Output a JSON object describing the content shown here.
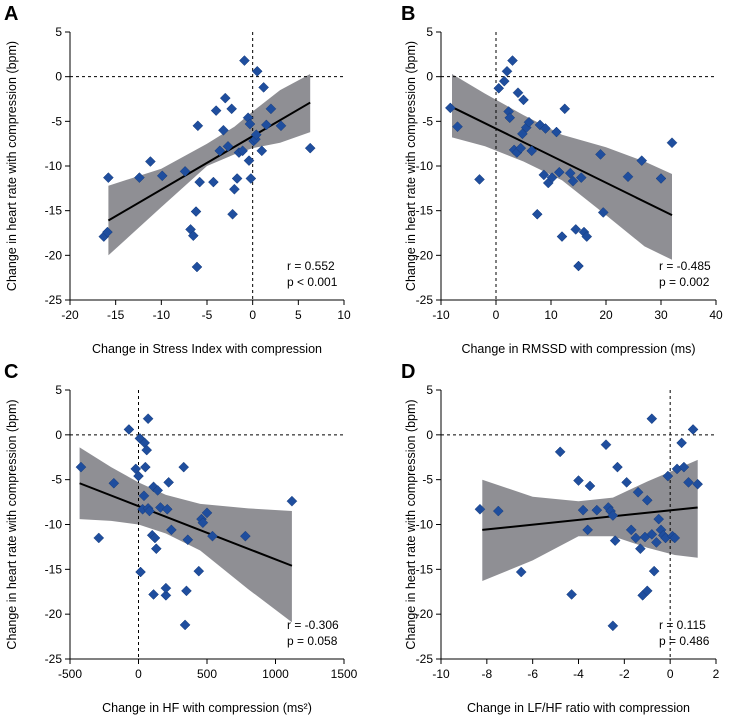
{
  "figure": {
    "ylabel": "Change in heart rate with compression (bpm)"
  },
  "colors": {
    "point": "#1f4e9e",
    "band": "#8f8f94",
    "line": "#000000",
    "refline": "#000000"
  },
  "chart_data": [
    {
      "panel": "A",
      "type": "scatter",
      "xlabel": "Change in Stress Index with compression",
      "ylabel": "Change in heart rate with compression (bpm)",
      "xlim": [
        -20,
        10
      ],
      "xticks": [
        -20,
        -15,
        -10,
        -5,
        0,
        5,
        10
      ],
      "ylim": [
        -25,
        5
      ],
      "yticks": [
        -25,
        -20,
        -15,
        -10,
        -5,
        0,
        5
      ],
      "stats": [
        "r = 0.552",
        "p < 0.001"
      ],
      "regression": {
        "x": [
          -15.8,
          6.3
        ],
        "y": [
          -16.1,
          -2.9
        ]
      },
      "band": {
        "x": [
          -15.8,
          -10,
          -5,
          -2,
          0,
          3,
          6.3
        ],
        "upper": [
          -12.2,
          -10.3,
          -7.5,
          -5.6,
          -3.9,
          -1.5,
          0.3
        ],
        "lower": [
          -20.0,
          -14.6,
          -10.0,
          -8.7,
          -8.0,
          -7.4,
          -6.2
        ]
      },
      "points": [
        [
          -16.3,
          -17.9
        ],
        [
          -15.9,
          -17.4
        ],
        [
          -15.8,
          -11.3
        ],
        [
          -12.4,
          -11.3
        ],
        [
          -11.2,
          -9.5
        ],
        [
          -9.9,
          -11.1
        ],
        [
          -7.4,
          -10.6
        ],
        [
          -6.8,
          -17.1
        ],
        [
          -6.5,
          -17.8
        ],
        [
          -6.2,
          -15.1
        ],
        [
          -6.1,
          -21.3
        ],
        [
          -6.0,
          -5.5
        ],
        [
          -5.8,
          -11.8
        ],
        [
          -4.3,
          -11.8
        ],
        [
          -4.0,
          -3.8
        ],
        [
          -3.6,
          -8.3
        ],
        [
          -3.2,
          -6.0
        ],
        [
          -3.0,
          -2.4
        ],
        [
          -2.7,
          -7.8
        ],
        [
          -2.3,
          -3.6
        ],
        [
          -2.2,
          -15.4
        ],
        [
          -2.0,
          -12.6
        ],
        [
          -1.7,
          -11.4
        ],
        [
          -1.5,
          -8.5
        ],
        [
          -1.1,
          -8.3
        ],
        [
          -0.9,
          1.8
        ],
        [
          -0.5,
          -4.6
        ],
        [
          -0.4,
          -9.4
        ],
        [
          -0.3,
          -5.3
        ],
        [
          -0.2,
          -11.4
        ],
        [
          0.1,
          -7.2
        ],
        [
          0.3,
          -7.0
        ],
        [
          0.4,
          -6.5
        ],
        [
          0.5,
          0.6
        ],
        [
          1.0,
          -8.3
        ],
        [
          1.2,
          -1.2
        ],
        [
          1.5,
          -5.4
        ],
        [
          2.0,
          -3.6
        ],
        [
          3.1,
          -5.5
        ],
        [
          6.3,
          -8.0
        ]
      ]
    },
    {
      "panel": "B",
      "type": "scatter",
      "xlabel": "Change in RMSSD with compression (ms)",
      "ylabel": "Change in heart rate with compression (bpm)",
      "xlim": [
        -10,
        40
      ],
      "xticks": [
        -10,
        0,
        10,
        20,
        30,
        40
      ],
      "ylim": [
        -25,
        5
      ],
      "yticks": [
        -25,
        -20,
        -15,
        -10,
        -5,
        0,
        5
      ],
      "stats": [
        "r = -0.485",
        "p = 0.002"
      ],
      "regression": {
        "x": [
          -8,
          32
        ],
        "y": [
          -3.4,
          -15.5
        ]
      },
      "band": {
        "x": [
          -8,
          -2,
          5,
          12,
          20,
          27,
          32
        ],
        "upper": [
          0.3,
          -1.9,
          -4.3,
          -6.5,
          -7.9,
          -9.5,
          -10.9
        ],
        "lower": [
          -6.8,
          -7.8,
          -9.5,
          -11.6,
          -15.5,
          -19.0,
          -20.5
        ]
      },
      "points": [
        [
          -8.3,
          -3.5
        ],
        [
          -7.0,
          -5.6
        ],
        [
          -3.0,
          -11.5
        ],
        [
          0.5,
          -1.3
        ],
        [
          1.5,
          -0.5
        ],
        [
          2.0,
          0.6
        ],
        [
          2.3,
          -3.9
        ],
        [
          2.5,
          -4.6
        ],
        [
          3.0,
          1.8
        ],
        [
          3.3,
          -8.2
        ],
        [
          3.8,
          -8.5
        ],
        [
          4.0,
          -1.8
        ],
        [
          4.5,
          -8.0
        ],
        [
          4.8,
          -6.4
        ],
        [
          5.0,
          -2.6
        ],
        [
          5.5,
          -5.7
        ],
        [
          6.0,
          -5.1
        ],
        [
          6.5,
          -8.3
        ],
        [
          7.5,
          -15.4
        ],
        [
          8.0,
          -5.4
        ],
        [
          8.7,
          -11.0
        ],
        [
          9.0,
          -5.8
        ],
        [
          9.5,
          -11.9
        ],
        [
          10.2,
          -11.3
        ],
        [
          11.0,
          -6.2
        ],
        [
          11.5,
          -10.7
        ],
        [
          12.0,
          -17.9
        ],
        [
          12.5,
          -3.6
        ],
        [
          13.5,
          -10.8
        ],
        [
          14.0,
          -11.7
        ],
        [
          14.5,
          -17.1
        ],
        [
          15.0,
          -21.2
        ],
        [
          15.5,
          -11.3
        ],
        [
          16.0,
          -17.4
        ],
        [
          16.5,
          -17.9
        ],
        [
          19.0,
          -8.7
        ],
        [
          19.5,
          -15.2
        ],
        [
          24.0,
          -11.2
        ],
        [
          26.5,
          -9.4
        ],
        [
          30.0,
          -11.4
        ],
        [
          32.0,
          -7.4
        ]
      ]
    },
    {
      "panel": "C",
      "type": "scatter",
      "xlabel": "Change in HF with compression (ms²)",
      "ylabel": "Change in heart rate with compression (bpm)",
      "xlim": [
        -500,
        1500
      ],
      "xticks": [
        -500,
        0,
        500,
        1000,
        1500
      ],
      "ylim": [
        -25,
        5
      ],
      "yticks": [
        -25,
        -20,
        -15,
        -10,
        -5,
        0,
        5
      ],
      "stats": [
        "r = -0.306",
        "p = 0.058"
      ],
      "regression": {
        "x": [
          -430,
          1120
        ],
        "y": [
          -5.4,
          -14.6
        ]
      },
      "band": {
        "x": [
          -430,
          -200,
          0,
          200,
          450,
          800,
          1120
        ],
        "upper": [
          -1.4,
          -3.6,
          -5.3,
          -6.7,
          -7.7,
          -8.2,
          -8.5
        ],
        "lower": [
          -9.4,
          -9.6,
          -10.0,
          -11.0,
          -12.9,
          -17.2,
          -20.9
        ]
      },
      "points": [
        [
          -420,
          -3.6
        ],
        [
          -290,
          -11.5
        ],
        [
          -180,
          -5.4
        ],
        [
          -70,
          0.6
        ],
        [
          -20,
          -3.8
        ],
        [
          0,
          -4.6
        ],
        [
          10,
          -0.4
        ],
        [
          15,
          -15.3
        ],
        [
          30,
          -8.3
        ],
        [
          40,
          -6.8
        ],
        [
          45,
          -0.9
        ],
        [
          50,
          -3.6
        ],
        [
          60,
          -1.7
        ],
        [
          70,
          1.8
        ],
        [
          70,
          -8.2
        ],
        [
          80,
          -8.5
        ],
        [
          100,
          -11.2
        ],
        [
          110,
          -17.8
        ],
        [
          110,
          -5.8
        ],
        [
          120,
          -11.5
        ],
        [
          130,
          -12.7
        ],
        [
          140,
          -6.2
        ],
        [
          160,
          -8.1
        ],
        [
          200,
          -17.9
        ],
        [
          200,
          -17.1
        ],
        [
          210,
          -8.3
        ],
        [
          220,
          -5.3
        ],
        [
          240,
          -10.6
        ],
        [
          330,
          -3.6
        ],
        [
          340,
          -21.2
        ],
        [
          350,
          -17.4
        ],
        [
          360,
          -11.7
        ],
        [
          440,
          -15.2
        ],
        [
          460,
          -9.4
        ],
        [
          470,
          -9.8
        ],
        [
          500,
          -8.7
        ],
        [
          540,
          -11.3
        ],
        [
          780,
          -11.3
        ],
        [
          1120,
          -7.4
        ]
      ]
    },
    {
      "panel": "D",
      "type": "scatter",
      "xlabel": "Change in LF/HF ratio with compression",
      "ylabel": "Change in heart rate with compression (bpm)",
      "xlim": [
        -10,
        2
      ],
      "xticks": [
        -10,
        -8,
        -6,
        -4,
        -2,
        0,
        2
      ],
      "ylim": [
        -25,
        5
      ],
      "yticks": [
        -25,
        -20,
        -15,
        -10,
        -5,
        0,
        5
      ],
      "stats": [
        "r = 0.115",
        "p = 0.486"
      ],
      "regression": {
        "x": [
          -8.2,
          1.2
        ],
        "y": [
          -10.6,
          -8.1
        ]
      },
      "band": {
        "x": [
          -8.2,
          -6,
          -4,
          -2.5,
          -1,
          0.2,
          1.2
        ],
        "upper": [
          -5.0,
          -6.9,
          -7.4,
          -7.0,
          -5.2,
          -3.9,
          -2.8
        ],
        "lower": [
          -16.3,
          -14.0,
          -11.3,
          -11.3,
          -12.6,
          -13.4,
          -13.7
        ]
      },
      "points": [
        [
          -8.3,
          -8.3
        ],
        [
          -7.5,
          -8.5
        ],
        [
          -6.5,
          -15.3
        ],
        [
          -4.8,
          -1.9
        ],
        [
          -4.3,
          -17.8
        ],
        [
          -4.0,
          -5.1
        ],
        [
          -3.8,
          -8.4
        ],
        [
          -3.6,
          -10.6
        ],
        [
          -3.5,
          -5.7
        ],
        [
          -3.2,
          -8.4
        ],
        [
          -2.8,
          -1.1
        ],
        [
          -2.7,
          -8.1
        ],
        [
          -2.6,
          -8.5
        ],
        [
          -2.5,
          -9.0
        ],
        [
          -2.5,
          -21.3
        ],
        [
          -2.4,
          -11.8
        ],
        [
          -2.3,
          -3.6
        ],
        [
          -1.9,
          -5.3
        ],
        [
          -1.7,
          -10.6
        ],
        [
          -1.5,
          -11.5
        ],
        [
          -1.4,
          -6.4
        ],
        [
          -1.3,
          -12.7
        ],
        [
          -1.2,
          -17.9
        ],
        [
          -1.1,
          -11.4
        ],
        [
          -1.0,
          -17.4
        ],
        [
          -1.0,
          -7.3
        ],
        [
          -0.8,
          1.8
        ],
        [
          -0.8,
          -11.1
        ],
        [
          -0.7,
          -15.2
        ],
        [
          -0.6,
          -12.0
        ],
        [
          -0.5,
          -9.4
        ],
        [
          -0.4,
          -10.6
        ],
        [
          -0.3,
          -11.2
        ],
        [
          -0.2,
          -11.5
        ],
        [
          -0.1,
          -4.6
        ],
        [
          0.1,
          -11.3
        ],
        [
          0.2,
          -11.5
        ],
        [
          0.3,
          -3.8
        ],
        [
          0.5,
          -0.9
        ],
        [
          0.6,
          -3.6
        ],
        [
          0.8,
          -5.3
        ],
        [
          1.0,
          0.6
        ],
        [
          1.2,
          -5.5
        ]
      ]
    }
  ]
}
